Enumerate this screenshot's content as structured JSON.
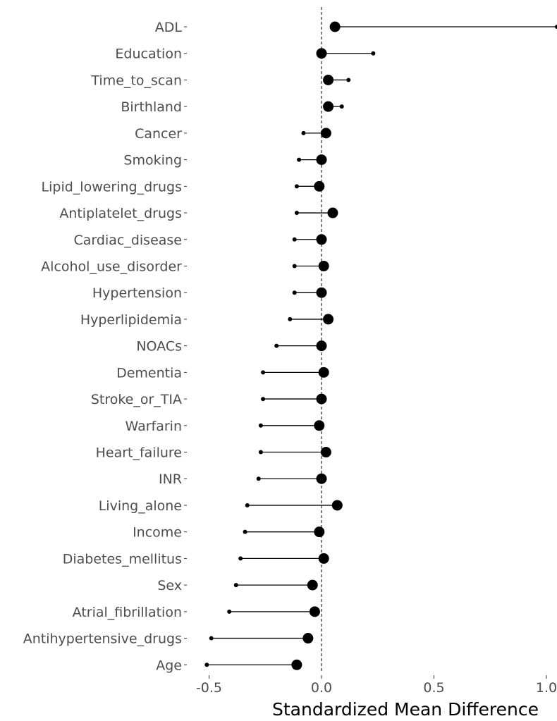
{
  "chart_data": {
    "type": "dumbbell",
    "xlabel": "Standardized Mean Difference",
    "ylabel": "",
    "xlim": [
      -0.58,
      1.05
    ],
    "xticks": [
      -0.5,
      0.0,
      0.5,
      1.0
    ],
    "xtick_labels": [
      "-0.5",
      "0.0",
      "0.5",
      "1.0"
    ],
    "zero_line": 0.0,
    "grid": false,
    "series": [
      {
        "marker": "small",
        "values": [
          1.05,
          0.23,
          0.12,
          0.09,
          -0.08,
          -0.1,
          -0.11,
          -0.11,
          -0.12,
          -0.12,
          -0.12,
          -0.14,
          -0.2,
          -0.26,
          -0.26,
          -0.27,
          -0.27,
          -0.28,
          -0.33,
          -0.34,
          -0.36,
          -0.38,
          -0.41,
          -0.49,
          -0.51
        ]
      },
      {
        "marker": "large",
        "values": [
          0.06,
          0.0,
          0.03,
          0.03,
          0.02,
          0.0,
          -0.01,
          0.05,
          0.0,
          0.01,
          0.0,
          0.03,
          0.0,
          0.01,
          0.0,
          -0.01,
          0.02,
          0.0,
          0.07,
          -0.01,
          0.01,
          -0.04,
          -0.03,
          -0.06,
          -0.11
        ]
      }
    ],
    "categories": [
      "ADL",
      "Education",
      "Time_to_scan",
      "Birthland",
      "Cancer",
      "Smoking",
      "Lipid_lowering_drugs",
      "Antiplatelet_drugs",
      "Cardiac_disease",
      "Alcohol_use_disorder",
      "Hypertension",
      "Hyperlipidemia",
      "NOACs",
      "Dementia",
      "Stroke_or_TIA",
      "Warfarin",
      "Heart_failure",
      "INR",
      "Living_alone",
      "Income",
      "Diabetes_mellitus",
      "Sex",
      "Atrial_fibrillation",
      "Antihypertensive_drugs",
      "Age"
    ]
  }
}
